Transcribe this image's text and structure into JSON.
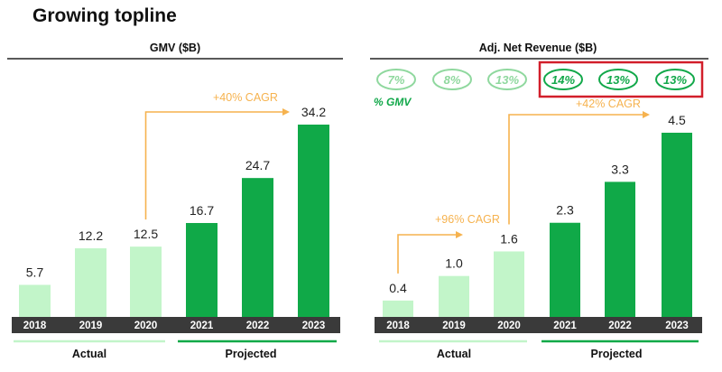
{
  "page_title": "Growing topline",
  "colors": {
    "actual": "#c2f5c9",
    "projected": "#10a948",
    "cagr": "#f6b24e",
    "axis_band": "#3a3a3a",
    "highlight_box": "#d21f2b",
    "pct_green": "#12a84a",
    "pct_light": "#8fd89e"
  },
  "chart_data": [
    {
      "type": "bar",
      "title": "GMV ($B)",
      "categories": [
        "2018",
        "2019",
        "2020",
        "2021",
        "2022",
        "2023"
      ],
      "values": [
        5.7,
        12.2,
        12.5,
        16.7,
        24.7,
        34.2
      ],
      "value_labels": [
        "5.7",
        "12.2",
        "12.5",
        "16.7",
        "24.7",
        "34.2"
      ],
      "period": [
        "actual",
        "actual",
        "actual",
        "projected",
        "projected",
        "projected"
      ],
      "ylim": [
        0,
        36
      ],
      "group_labels": {
        "actual": "Actual",
        "projected": "Projected"
      },
      "annotations": [
        {
          "label": "+40% CAGR",
          "from": "2020",
          "to": "2023"
        }
      ]
    },
    {
      "type": "bar",
      "title": "Adj. Net Revenue ($B)",
      "categories": [
        "2018",
        "2019",
        "2020",
        "2021",
        "2022",
        "2023"
      ],
      "values": [
        0.4,
        1.0,
        1.6,
        2.3,
        3.3,
        4.5
      ],
      "value_labels": [
        "0.4",
        "1.0",
        "1.6",
        "2.3",
        "3.3",
        "4.5"
      ],
      "period": [
        "actual",
        "actual",
        "actual",
        "projected",
        "projected",
        "projected"
      ],
      "ylim": [
        0,
        5.3
      ],
      "group_labels": {
        "actual": "Actual",
        "projected": "Projected"
      },
      "pct_gmv_label": "% GMV",
      "pct_gmv": [
        "7%",
        "8%",
        "13%",
        "14%",
        "13%",
        "13%"
      ],
      "pct_gmv_highlighted": [
        false,
        false,
        false,
        true,
        true,
        true
      ],
      "annotations": [
        {
          "label": "+96% CAGR",
          "from": "2018",
          "to": "2020"
        },
        {
          "label": "+42% CAGR",
          "from": "2020",
          "to": "2023"
        }
      ]
    }
  ]
}
